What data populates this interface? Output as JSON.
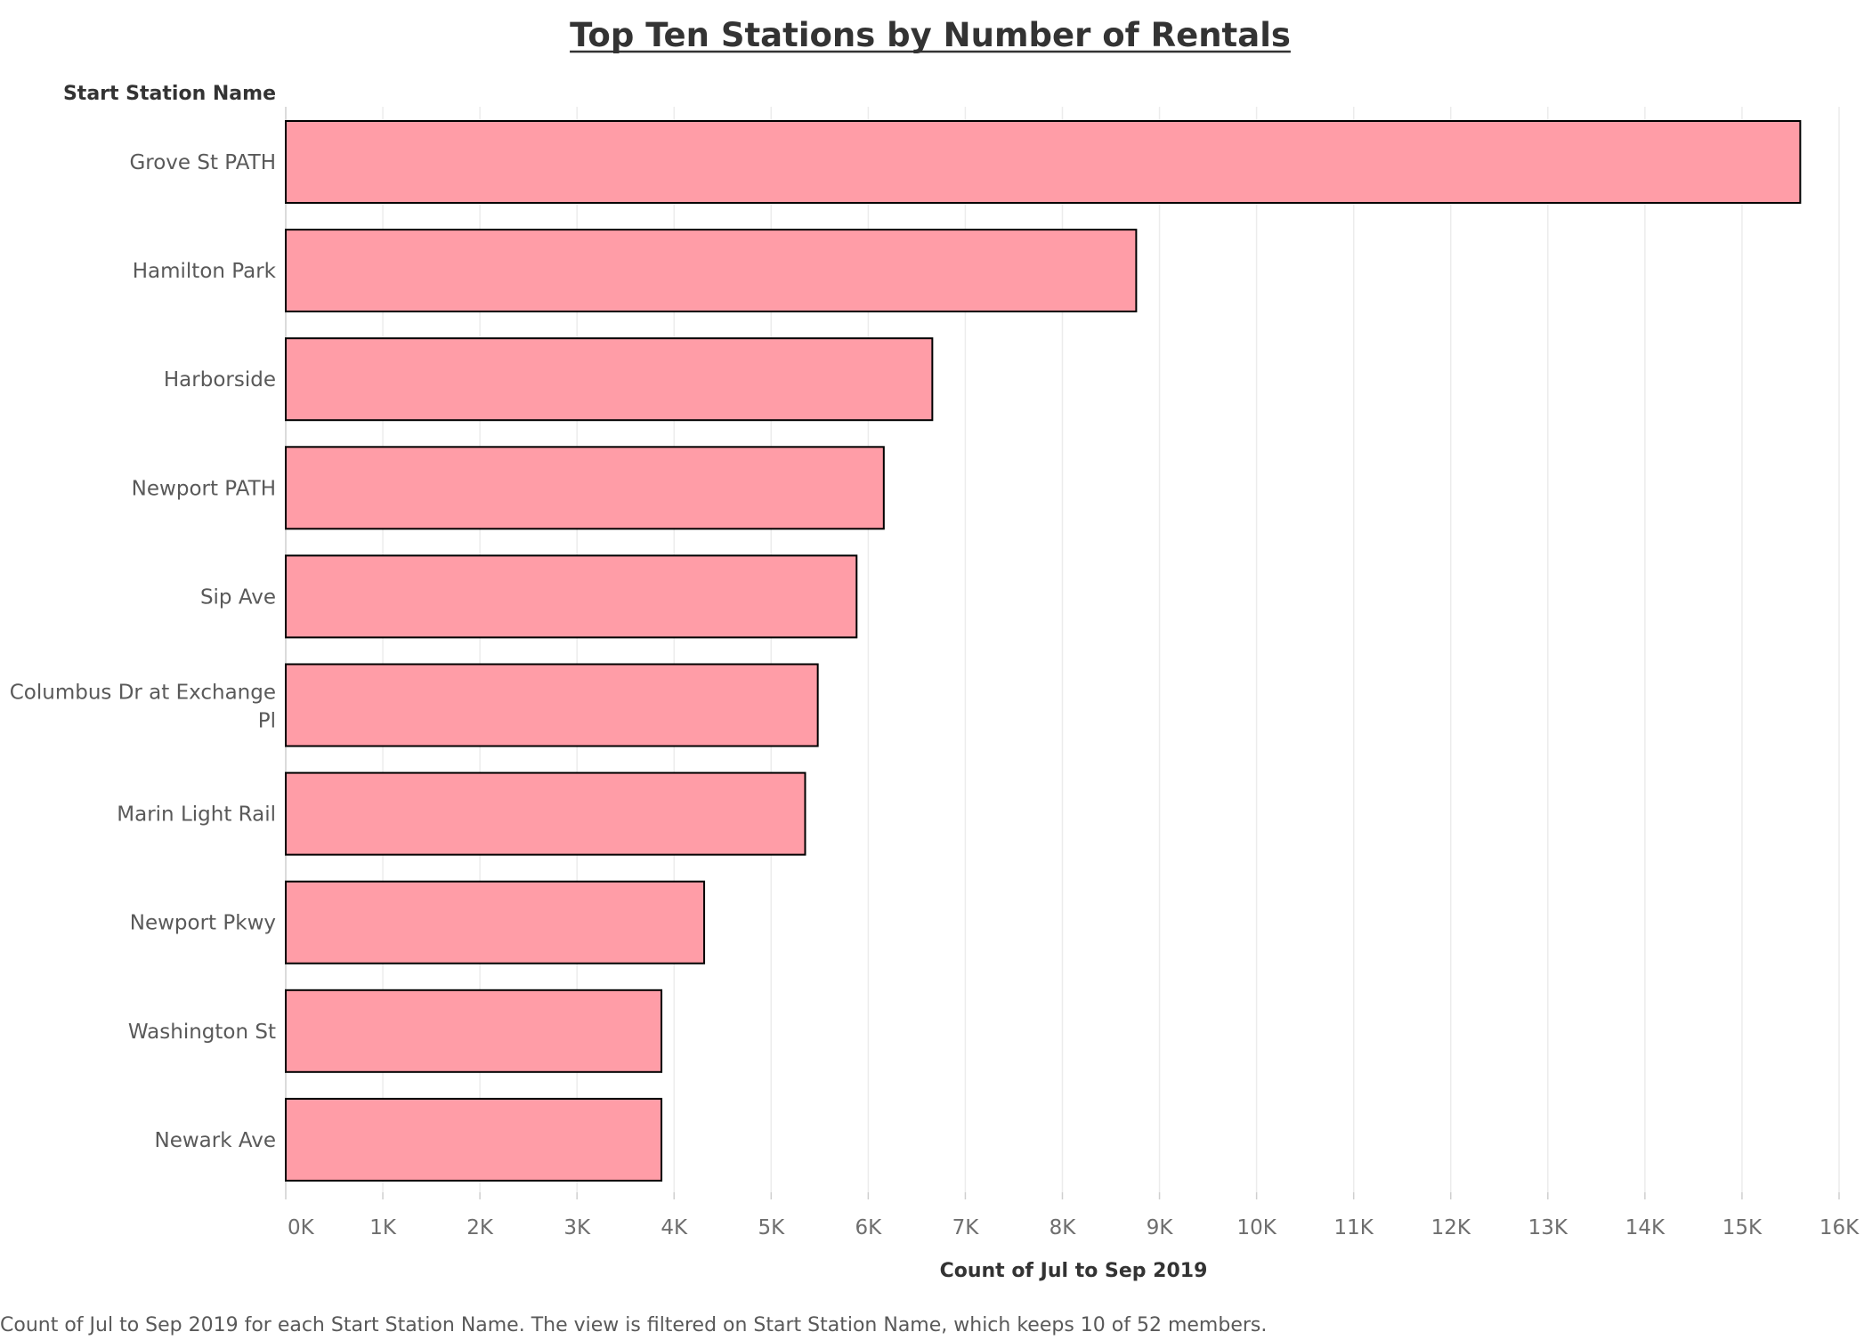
{
  "chart_data": {
    "type": "bar",
    "orientation": "horizontal",
    "title": "Top Ten Stations by Number of Rentals",
    "row_header": "Start Station Name",
    "xlabel": "Count of Jul to Sep 2019",
    "categories": [
      "Grove St PATH",
      "Hamilton Park",
      "Harborside",
      "Newport PATH",
      "Sip Ave",
      "Columbus Dr at Exchange Pl",
      "Marin Light Rail",
      "Newport Pkwy",
      "Washington St",
      "Newark Ave"
    ],
    "values": [
      15600,
      8760,
      6660,
      6160,
      5880,
      5480,
      5350,
      4310,
      3870,
      3870
    ],
    "xlim": [
      0,
      16000
    ],
    "x_ticks": [
      "0K",
      "1K",
      "2K",
      "3K",
      "4K",
      "5K",
      "6K",
      "7K",
      "8K",
      "9K",
      "10K",
      "11K",
      "12K",
      "13K",
      "14K",
      "15K",
      "16K"
    ],
    "grid": "vertical",
    "bar_color": "#ff9da7",
    "bar_outline": "#000000",
    "caption": "Count of Jul to Sep 2019 for each Start Station Name. The view is filtered on Start Station Name, which keeps 10 of 52 members."
  }
}
